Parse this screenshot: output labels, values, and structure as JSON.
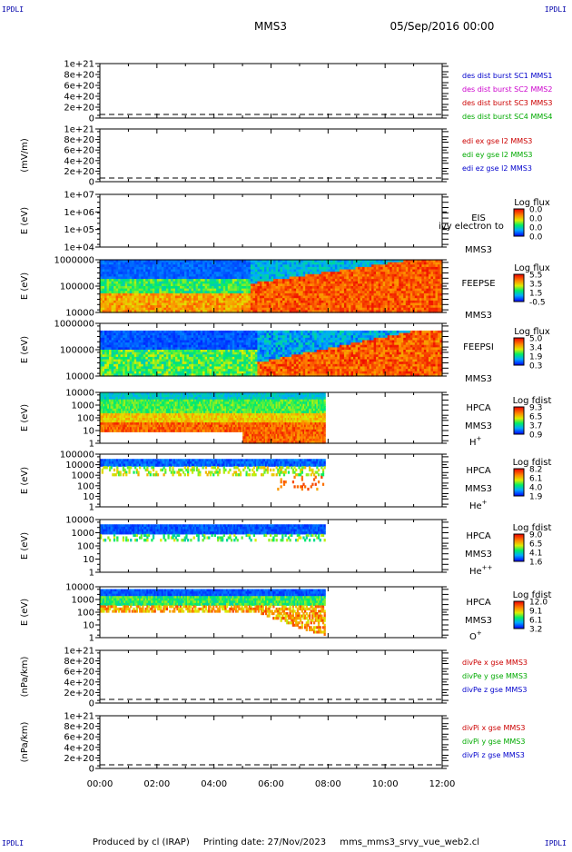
{
  "header": {
    "corner_label": "IPDLI",
    "spacecraft": "MMS3",
    "datetime": "05/Sep/2016 00:00"
  },
  "footer": {
    "produced_by": "Produced by cl (IRAP)",
    "printing_date": "Printing date: 27/Nov/2023",
    "script_name": "mms_mms3_srvy_vue_web2.cl"
  },
  "colors": {
    "axis": "#000000",
    "blue": "#0000cc",
    "magenta": "#cc00cc",
    "red": "#cc0000",
    "green": "#00aa00"
  },
  "chart_data": [
    {
      "id": "des",
      "type": "line",
      "xlim": [
        "00:00",
        "12:00"
      ],
      "x_ticks": [
        "00:00",
        "02:00",
        "04:00",
        "06:00",
        "08:00",
        "10:00",
        "12:00"
      ],
      "ylabel": "",
      "ylim": [
        0,
        1e+21
      ],
      "y_ticks": [
        "1e+21",
        "8e+20",
        "6e+20",
        "4e+20",
        "2e+20",
        "0"
      ],
      "grid": false,
      "legend_position": "right",
      "series": [
        {
          "name": "des dist burst SC1 MMS1",
          "color": "#0000cc"
        },
        {
          "name": "des dist burst SC2 MMS2",
          "color": "#cc00cc"
        },
        {
          "name": "des dist burst SC3 MMS3",
          "color": "#cc0000"
        },
        {
          "name": "des dist burst SC4 MMS4",
          "color": "#00aa00"
        }
      ]
    },
    {
      "id": "edi",
      "type": "line",
      "xlim": [
        "00:00",
        "12:00"
      ],
      "ylabel": "(mV/m)",
      "ylim": [
        0,
        1e+21
      ],
      "y_ticks": [
        "1e+21",
        "8e+20",
        "6e+20",
        "4e+20",
        "2e+20",
        "0"
      ],
      "legend_position": "right",
      "series": [
        {
          "name": "edi ex gse l2 MMS3",
          "color": "#cc0000"
        },
        {
          "name": "edi ey gse l2 MMS3",
          "color": "#00aa00"
        },
        {
          "name": "edi ez gse l2 MMS3",
          "color": "#0000cc"
        }
      ]
    },
    {
      "id": "eis",
      "type": "heatmap",
      "xlim": [
        "00:00",
        "12:00"
      ],
      "ylabel": "E (eV)",
      "y_scale": "log",
      "y_ticks": [
        "1e+07",
        "1e+06",
        "1e+05",
        "1e+04"
      ],
      "instrument": "EIS",
      "spacecraft": "MMS3",
      "overlay_text": "ivy electron to",
      "colorbar": {
        "title": "Log flux",
        "ticks": [
          "0.0",
          "0.0",
          "0.0",
          "0.0"
        ]
      },
      "data_coverage": []
    },
    {
      "id": "feepse",
      "type": "heatmap",
      "xlim": [
        "00:00",
        "12:00"
      ],
      "ylabel": "E (eV)",
      "y_scale": "log",
      "y_ticks": [
        "1000000",
        "100000",
        "10000"
      ],
      "instrument": "FEEPSE",
      "spacecraft": "MMS3",
      "colorbar": {
        "title": "Log flux",
        "ticks": [
          "5.5",
          "3.5",
          "1.5",
          "-0.5"
        ]
      },
      "data_coverage": [
        0,
        12
      ]
    },
    {
      "id": "feepsi",
      "type": "heatmap",
      "xlim": [
        "00:00",
        "12:00"
      ],
      "ylabel": "E (eV)",
      "y_scale": "log",
      "y_ticks": [
        "1000000",
        "100000",
        "10000"
      ],
      "instrument": "FEEPSI",
      "spacecraft": "MMS3",
      "colorbar": {
        "title": "Log flux",
        "ticks": [
          "5.0",
          "3.4",
          "1.9",
          "0.3"
        ]
      },
      "data_coverage": [
        0,
        12
      ]
    },
    {
      "id": "hpca_h",
      "type": "heatmap",
      "xlim": [
        "00:00",
        "12:00"
      ],
      "ylabel": "E (eV)",
      "y_scale": "log",
      "y_ticks": [
        "10000",
        "1000",
        "100",
        "10",
        "1"
      ],
      "instrument": "HPCA",
      "spacecraft": "MMS3",
      "species": "H",
      "charge": "+",
      "colorbar": {
        "title": "Log fdist",
        "ticks": [
          "9.3",
          "6.5",
          "3.7",
          "0.9"
        ]
      },
      "data_coverage": [
        0,
        7.9
      ]
    },
    {
      "id": "hpca_he",
      "type": "heatmap",
      "xlim": [
        "00:00",
        "12:00"
      ],
      "ylabel": "E (eV)",
      "y_scale": "log",
      "y_ticks": [
        "100000",
        "10000",
        "1000",
        "100",
        "10",
        "1"
      ],
      "instrument": "HPCA",
      "spacecraft": "MMS3",
      "species": "He",
      "charge": "+",
      "colorbar": {
        "title": "Log fdist",
        "ticks": [
          "8.2",
          "6.1",
          "4.0",
          "1.9"
        ]
      },
      "data_coverage": [
        0,
        7.9
      ]
    },
    {
      "id": "hpca_hepp",
      "type": "heatmap",
      "xlim": [
        "00:00",
        "12:00"
      ],
      "ylabel": "E (eV)",
      "y_scale": "log",
      "y_ticks": [
        "10000",
        "1000",
        "100",
        "10",
        "1"
      ],
      "instrument": "HPCA",
      "spacecraft": "MMS3",
      "species": "He",
      "charge": "++",
      "colorbar": {
        "title": "Log fdist",
        "ticks": [
          "9.0",
          "6.5",
          "4.1",
          "1.6"
        ]
      },
      "data_coverage": [
        0,
        7.9
      ]
    },
    {
      "id": "hpca_o",
      "type": "heatmap",
      "xlim": [
        "00:00",
        "12:00"
      ],
      "ylabel": "E (eV)",
      "y_scale": "log",
      "y_ticks": [
        "10000",
        "1000",
        "100",
        "10",
        "1"
      ],
      "instrument": "HPCA",
      "spacecraft": "MMS3",
      "species": "O",
      "charge": "+",
      "colorbar": {
        "title": "Log fdist",
        "ticks": [
          "12.0",
          "9.1",
          "6.1",
          "3.2"
        ]
      },
      "data_coverage": [
        0,
        7.9
      ]
    },
    {
      "id": "divpe",
      "type": "line",
      "xlim": [
        "00:00",
        "12:00"
      ],
      "ylabel": "(nPa/km)",
      "ylim": [
        0,
        1e+21
      ],
      "y_ticks": [
        "1e+21",
        "8e+20",
        "6e+20",
        "4e+20",
        "2e+20",
        "0"
      ],
      "legend_position": "right",
      "series": [
        {
          "name": "divPe x gse MMS3",
          "color": "#cc0000"
        },
        {
          "name": "divPe y gse MMS3",
          "color": "#00aa00"
        },
        {
          "name": "divPe z gse MMS3",
          "color": "#0000cc"
        }
      ]
    },
    {
      "id": "divpi",
      "type": "line",
      "xlim": [
        "00:00",
        "12:00"
      ],
      "ylabel": "(nPa/km)",
      "ylim": [
        0,
        1e+21
      ],
      "y_ticks": [
        "1e+21",
        "8e+20",
        "6e+20",
        "4e+20",
        "2e+20",
        "0"
      ],
      "legend_position": "right",
      "series": [
        {
          "name": "divPi x gse MMS3",
          "color": "#cc0000"
        },
        {
          "name": "divPi y gse MMS3",
          "color": "#00aa00"
        },
        {
          "name": "divPi z gse MMS3",
          "color": "#0000cc"
        }
      ]
    }
  ]
}
